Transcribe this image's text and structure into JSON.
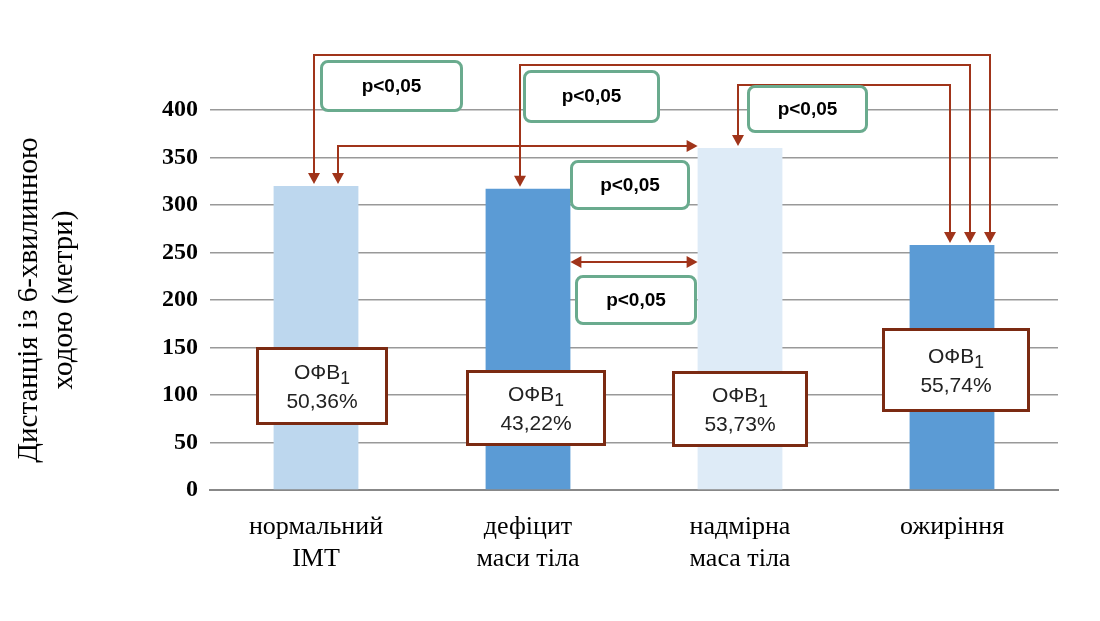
{
  "chart_data": {
    "type": "bar",
    "ylabel": "Дистанція із 6-хвилинною\nходою (метри)",
    "categories": [
      "нормальний\nІМТ",
      "дефіцит\nмаси тіла",
      "надмірна\nмаса тіла",
      "ожиріння"
    ],
    "values": [
      320,
      317,
      360,
      258
    ],
    "colors": [
      "#bdd7ee",
      "#5b9bd5",
      "#deebf7",
      "#5b9bd5"
    ],
    "ylim": [
      0,
      400
    ],
    "yticks": [
      0,
      50,
      100,
      150,
      200,
      250,
      300,
      350,
      400
    ],
    "grid": "y",
    "legend": false,
    "annotations": [
      "ОФВ$_{1}$\n50,36%",
      "ОФВ$_{1}$\n43,22%",
      "ОФВ$_{1}$\n53,73%",
      "ОФВ$_{1}$\n55,74%",
      "p<0,05",
      "p<0,05",
      "p<0,05",
      "p<0,05",
      "p<0,05"
    ]
  }
}
